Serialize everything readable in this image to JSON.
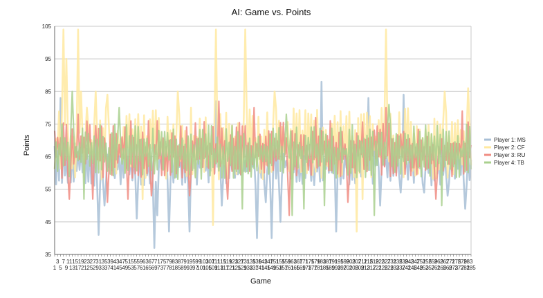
{
  "chart_data": {
    "type": "line",
    "title": "AI: Game vs. Points",
    "xlabel": "Game",
    "ylabel": "Points",
    "xlim": [
      1,
      285
    ],
    "ylim": [
      35,
      105
    ],
    "y_ticks": [
      35,
      45,
      55,
      65,
      75,
      85,
      95,
      105
    ],
    "x_tick_first": 1,
    "x_tick_step": 2,
    "x_tick_last": 285,
    "grid": "horizontal",
    "legend_position": "right",
    "series": [
      {
        "name": "Player 1: MS",
        "color": "#a8bfd6",
        "typical_range": [
          56,
          70
        ],
        "peaks": [
          [
            5,
            83
          ],
          [
            111,
            82
          ],
          [
            183,
            88
          ],
          [
            193,
            84
          ],
          [
            215,
            83
          ],
          [
            239,
            84
          ],
          [
            281,
            88
          ]
        ],
        "dips": [
          [
            31,
            41
          ],
          [
            35,
            50
          ],
          [
            57,
            46
          ],
          [
            69,
            37
          ],
          [
            71,
            47
          ],
          [
            79,
            42
          ],
          [
            93,
            42
          ],
          [
            115,
            50
          ],
          [
            139,
            40
          ],
          [
            145,
            51
          ],
          [
            149,
            40
          ],
          [
            155,
            45
          ],
          [
            193,
            42
          ],
          [
            223,
            50
          ],
          [
            237,
            54
          ],
          [
            253,
            54
          ],
          [
            269,
            53
          ],
          [
            281,
            49
          ]
        ]
      },
      {
        "name": "Player 2: CF",
        "color": "#ffe9a0",
        "typical_range": [
          58,
          80
        ],
        "peaks": [
          [
            7,
            104
          ],
          [
            9,
            95
          ],
          [
            17,
            104
          ],
          [
            19,
            85
          ],
          [
            23,
            80
          ],
          [
            29,
            85
          ],
          [
            37,
            84
          ],
          [
            61,
            84
          ],
          [
            85,
            85
          ],
          [
            111,
            104
          ],
          [
            131,
            104
          ],
          [
            151,
            85
          ],
          [
            227,
            104
          ],
          [
            267,
            85
          ],
          [
            283,
            86
          ]
        ],
        "dips": [
          [
            61,
            52
          ],
          [
            109,
            44
          ],
          [
            207,
            42
          ],
          [
            211,
            52
          ]
        ]
      },
      {
        "name": "Player 3: RU",
        "color": "#f08c82",
        "typical_range": [
          58,
          76
        ],
        "peaks": [
          [
            17,
            78
          ],
          [
            113,
            82
          ],
          [
            137,
            80
          ],
          [
            179,
            77
          ],
          [
            227,
            80
          ],
          [
            279,
            79
          ]
        ],
        "dips": [
          [
            11,
            52
          ],
          [
            27,
            52
          ],
          [
            37,
            51
          ],
          [
            51,
            52
          ],
          [
            67,
            53
          ],
          [
            93,
            53
          ],
          [
            119,
            52
          ],
          [
            161,
            47
          ],
          [
            201,
            51
          ],
          [
            261,
            52
          ]
        ]
      },
      {
        "name": "Player 4: TB",
        "color": "#a9d08e",
        "typical_range": [
          58,
          75
        ],
        "peaks": [
          [
            13,
            85
          ],
          [
            45,
            80
          ],
          [
            159,
            78
          ],
          [
            229,
            81
          ]
        ],
        "dips": [
          [
            21,
            52
          ],
          [
            129,
            49
          ],
          [
            163,
            47
          ],
          [
            171,
            49
          ],
          [
            185,
            50
          ],
          [
            219,
            47
          ],
          [
            265,
            50
          ]
        ]
      }
    ]
  }
}
